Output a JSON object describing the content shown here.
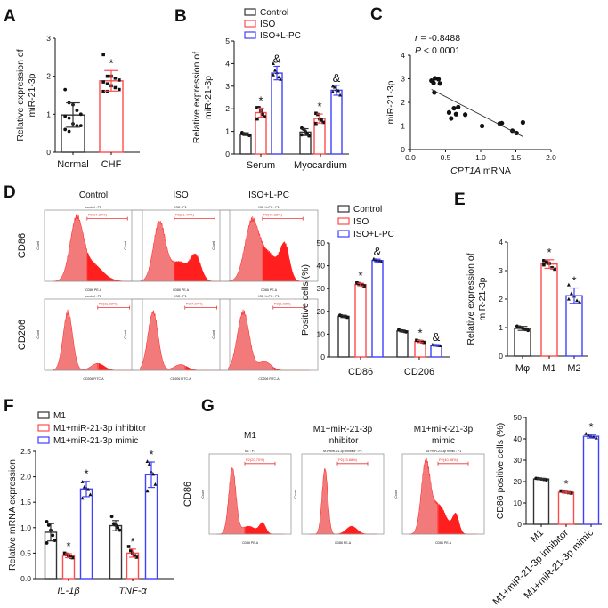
{
  "panels": [
    "A",
    "B",
    "C",
    "D",
    "E",
    "F",
    "G"
  ],
  "chart_data": [
    {
      "panel": "A",
      "type": "bar",
      "ylabel": [
        "Relative  expression of",
        "miR-21-3p"
      ],
      "ylim": [
        0,
        3
      ],
      "yticks": [
        "0",
        "1",
        "2",
        "3"
      ],
      "categories": [
        "Normal",
        "CHF"
      ],
      "bars": [
        {
          "category": "Normal",
          "color": "#333333",
          "mean": 0.98,
          "sd": 0.32,
          "shape": "circle",
          "points": [
            1.65,
            1.3,
            1.25,
            1.1,
            1.0,
            0.95,
            0.9,
            0.75,
            0.7,
            0.7,
            0.6,
            0.55
          ],
          "sig": ""
        },
        {
          "category": "CHF",
          "color": "#ff4b4b",
          "mean": 1.88,
          "sd": 0.27,
          "shape": "square",
          "points": [
            2.57,
            2.0,
            2.0,
            1.95,
            1.9,
            1.85,
            1.8,
            1.75,
            1.7,
            1.65,
            1.6,
            1.6
          ],
          "sig": "*"
        }
      ]
    },
    {
      "panel": "B",
      "type": "bar",
      "ylabel": [
        "Relative  expression of",
        "miR-21-3p"
      ],
      "ylim": [
        0,
        5
      ],
      "yticks": [
        "0",
        "1",
        "2",
        "3",
        "4",
        "5"
      ],
      "categories": [
        "Serum",
        "Myocardium"
      ],
      "legend": [
        {
          "label": "Control",
          "color": "#333333"
        },
        {
          "label": "ISO",
          "color": "#ff4b4b"
        },
        {
          "label": "ISO+L-PC",
          "color": "#4040ff"
        }
      ],
      "bars": [
        {
          "category": "Serum",
          "series": "Control",
          "color": "#333333",
          "mean": 0.88,
          "sd": 0.06,
          "shape": "circle",
          "points": [
            0.95,
            0.9,
            0.88,
            0.85,
            0.82,
            0.9
          ],
          "sig": ""
        },
        {
          "category": "Serum",
          "series": "ISO",
          "color": "#ff4b4b",
          "mean": 1.83,
          "sd": 0.2,
          "shape": "square",
          "points": [
            2.05,
            2.05,
            1.9,
            1.75,
            1.65,
            1.55
          ],
          "sig": "*"
        },
        {
          "category": "Serum",
          "series": "ISO+L-PC",
          "color": "#4040ff",
          "mean": 3.58,
          "sd": 0.3,
          "shape": "triangle",
          "points": [
            4.0,
            3.7,
            3.6,
            3.4,
            3.3,
            3.5
          ],
          "sig": "&"
        },
        {
          "category": "Myocardium",
          "series": "Control",
          "color": "#333333",
          "mean": 0.97,
          "sd": 0.15,
          "shape": "circle",
          "points": [
            1.15,
            1.1,
            1.0,
            0.9,
            0.8,
            0.85
          ],
          "sig": ""
        },
        {
          "category": "Myocardium",
          "series": "ISO",
          "color": "#ff4b4b",
          "mean": 1.57,
          "sd": 0.2,
          "shape": "square",
          "points": [
            1.8,
            1.75,
            1.55,
            1.5,
            1.4,
            1.35
          ],
          "sig": "*"
        },
        {
          "category": "Myocardium",
          "series": "ISO+L-PC",
          "color": "#4040ff",
          "mean": 2.82,
          "sd": 0.22,
          "shape": "triangle",
          "points": [
            3.0,
            2.95,
            2.85,
            2.8,
            2.6,
            2.75
          ],
          "sig": "&"
        }
      ]
    },
    {
      "panel": "C",
      "type": "scatter",
      "ylabel": "miR-21-3p",
      "xlabel_italic": "CPT1A",
      "xlabel_rest": " mRNA",
      "stats": {
        "r_symbol": "r",
        "r_value": " = -0.8488",
        "p_symbol": "P",
        "p_value": " < 0.0001"
      },
      "xlim": [
        0,
        2
      ],
      "ylim": [
        0,
        4
      ],
      "xticks": [
        "0.0",
        "0.5",
        "1.0",
        "1.5",
        "2.0"
      ],
      "yticks": [
        "0",
        "1",
        "2",
        "3",
        "4"
      ],
      "x": [
        0.3,
        0.33,
        0.35,
        0.4,
        0.42,
        0.34,
        0.55,
        0.58,
        0.62,
        0.65,
        0.68,
        0.78,
        1.02,
        1.27,
        1.3,
        1.45,
        1.51,
        1.6
      ],
      "y": [
        2.92,
        2.82,
        3.02,
        2.98,
        2.8,
        2.42,
        1.57,
        1.32,
        1.75,
        1.5,
        1.8,
        1.48,
        1.0,
        1.1,
        1.12,
        0.8,
        0.7,
        1.15
      ],
      "fit": {
        "x": [
          0.3,
          1.6
        ],
        "y": [
          2.55,
          0.55
        ]
      }
    },
    {
      "panel": "D",
      "type": "histogram",
      "column_titles": [
        "Control",
        "ISO",
        "ISO+L-PC"
      ],
      "row_labels": [
        "CD86",
        "CD206"
      ],
      "ylabel": "Count",
      "plots": [
        {
          "title": "control : P1",
          "gate_label": "P2(17.39%)",
          "xlabel": "CD86 PE-A",
          "gate": [
            3.0,
            4.9
          ],
          "peaks": [
            {
              "c": 2.5,
              "h": 1,
              "w": 0.3
            },
            {
              "c": 3.2,
              "h": 0.3,
              "w": 0.5
            }
          ]
        },
        {
          "title": "ISO : P1",
          "gate_label": "P2(31.47%)",
          "xlabel": "CD86 PE-A",
          "gate": [
            3.0,
            4.9
          ],
          "peaks": [
            {
              "c": 2.3,
              "h": 1,
              "w": 0.28
            },
            {
              "c": 4.0,
              "h": 0.42,
              "w": 0.25
            },
            {
              "c": 3.2,
              "h": 0.33,
              "w": 0.4
            }
          ]
        },
        {
          "title": "ISO+L-PC : P1",
          "gate_label": "P2(43.82%)",
          "xlabel": "CD86 PE-A",
          "gate": [
            3.0,
            4.9
          ],
          "peaks": [
            {
              "c": 2.5,
              "h": 1,
              "w": 0.33
            },
            {
              "c": 4.05,
              "h": 0.58,
              "w": 0.22
            },
            {
              "c": 3.3,
              "h": 0.45,
              "w": 0.4
            }
          ]
        },
        {
          "title": "control : P1",
          "gate_label": "P2(11.88%)",
          "xlabel": "CD206 FITC-A",
          "gate": [
            3.5,
            5.0
          ],
          "peaks": [
            {
              "c": 2.1,
              "h": 1,
              "w": 0.22
            },
            {
              "c": 3.5,
              "h": 0.12,
              "w": 0.3
            }
          ]
        },
        {
          "title": "ISO : P1",
          "gate_label": "P2(7.27%)",
          "xlabel": "CD206 FITC-A",
          "gate": [
            3.5,
            5.0
          ],
          "peaks": [
            {
              "c": 2.0,
              "h": 1,
              "w": 0.24
            },
            {
              "c": 3.3,
              "h": 0.1,
              "w": 0.3
            }
          ]
        },
        {
          "title": "ISO+L-PC : P1",
          "gate_label": "P2(5.38%)",
          "xlabel": "CD206 FITC-A",
          "gate": [
            3.5,
            5.0
          ],
          "peaks": [
            {
              "c": 2.1,
              "h": 1,
              "w": 0.28
            },
            {
              "c": 3.1,
              "h": 0.15,
              "w": 0.3
            }
          ]
        }
      ]
    },
    {
      "panel": "D",
      "type": "bar",
      "ylabel": [
        "Positive cells (%)"
      ],
      "ylim": [
        0,
        50
      ],
      "yticks": [
        "0",
        "10",
        "20",
        "30",
        "40",
        "50"
      ],
      "categories": [
        "CD86",
        "CD206"
      ],
      "legend": [
        {
          "label": "Control",
          "color": "#333333"
        },
        {
          "label": "ISO",
          "color": "#ff4b4b"
        },
        {
          "label": "ISO+L-PC",
          "color": "#4040ff"
        }
      ],
      "bars": [
        {
          "category": "CD86",
          "series": "Control",
          "color": "#333333",
          "mean": 17.8,
          "sd": 0.5,
          "shape": "circle",
          "points": [
            18.3,
            18.0,
            17.8,
            17.6,
            17.4
          ],
          "sig": ""
        },
        {
          "category": "CD86",
          "series": "ISO",
          "color": "#ff4b4b",
          "mean": 31.8,
          "sd": 0.6,
          "shape": "square",
          "points": [
            32.5,
            32.2,
            31.8,
            31.5,
            31.2
          ],
          "sig": "*"
        },
        {
          "category": "CD86",
          "series": "ISO+L-PC",
          "color": "#4040ff",
          "mean": 42.3,
          "sd": 0.6,
          "shape": "triangle",
          "points": [
            43.0,
            42.6,
            42.3,
            42.0,
            41.8
          ],
          "sig": "&"
        },
        {
          "category": "CD206",
          "series": "Control",
          "color": "#333333",
          "mean": 11.4,
          "sd": 0.4,
          "shape": "circle",
          "points": [
            11.9,
            11.6,
            11.4,
            11.2,
            11.0
          ],
          "sig": ""
        },
        {
          "category": "CD206",
          "series": "ISO",
          "color": "#ff4b4b",
          "mean": 6.8,
          "sd": 0.5,
          "shape": "square",
          "points": [
            7.3,
            7.0,
            6.8,
            6.6,
            6.4
          ],
          "sig": "*"
        },
        {
          "category": "CD206",
          "series": "ISO+L-PC",
          "color": "#4040ff",
          "mean": 5.1,
          "sd": 0.3,
          "shape": "triangle",
          "points": [
            5.4,
            5.2,
            5.1,
            5.0,
            4.9
          ],
          "sig": "&"
        }
      ]
    },
    {
      "panel": "E",
      "type": "bar",
      "ylabel": [
        "Relative  expression of",
        "miR-21-3p"
      ],
      "ylim": [
        0,
        4
      ],
      "yticks": [
        "0",
        "1",
        "2",
        "3",
        "4"
      ],
      "categories": [
        "Mφ",
        "M1",
        "M2"
      ],
      "bars": [
        {
          "category": "Mφ",
          "color": "#333333",
          "mean": 0.97,
          "sd": 0.07,
          "shape": "circle",
          "points": [
            1.05,
            1.02,
            0.98,
            0.93,
            0.9
          ],
          "sig": ""
        },
        {
          "category": "M1",
          "color": "#ff4b4b",
          "mean": 3.23,
          "sd": 0.15,
          "shape": "square",
          "points": [
            3.35,
            3.3,
            3.25,
            3.1,
            3.05,
            3.2
          ],
          "sig": "*"
        },
        {
          "category": "M2",
          "color": "#4040ff",
          "mean": 2.12,
          "sd": 0.27,
          "shape": "triangle",
          "points": [
            2.5,
            2.2,
            2.1,
            1.95,
            1.9,
            2.0
          ],
          "sig": "*"
        }
      ]
    },
    {
      "panel": "F",
      "type": "bar",
      "ylabel": [
        "Relative mRNA expression"
      ],
      "ylim": [
        0,
        2.5
      ],
      "yticks": [
        "0.0",
        "0.5",
        "1.0",
        "1.5",
        "2.0",
        "2.5"
      ],
      "categories": [
        "IL-1β",
        "TNF-α"
      ],
      "legend": [
        {
          "label": "M1",
          "color": "#333333"
        },
        {
          "label": "M1+miR-21-3p inhibitor",
          "color": "#ff4b4b"
        },
        {
          "label": "M1+miR-21-3p mimic",
          "color": "#4040ff"
        }
      ],
      "bars": [
        {
          "category": "IL-1β",
          "series": "M1",
          "color": "#333333",
          "mean": 0.91,
          "sd": 0.17,
          "shape": "circle",
          "points": [
            1.12,
            1.05,
            0.95,
            0.85,
            0.75,
            0.7
          ],
          "sig": ""
        },
        {
          "category": "IL-1β",
          "series": "M1+miR-21-3p inhibitor",
          "color": "#ff4b4b",
          "mean": 0.45,
          "sd": 0.04,
          "shape": "square",
          "points": [
            0.5,
            0.48,
            0.45,
            0.42,
            0.41
          ],
          "sig": "*"
        },
        {
          "category": "IL-1β",
          "series": "M1+miR-21-3p mimic",
          "color": "#4040ff",
          "mean": 1.76,
          "sd": 0.15,
          "shape": "triangle",
          "points": [
            1.9,
            1.8,
            1.78,
            1.75,
            1.65,
            1.58
          ],
          "sig": "*"
        },
        {
          "category": "TNF-α",
          "series": "M1",
          "color": "#333333",
          "mean": 1.04,
          "sd": 0.1,
          "shape": "circle",
          "points": [
            1.22,
            1.08,
            1.05,
            1.0,
            0.95
          ],
          "sig": ""
        },
        {
          "category": "TNF-α",
          "series": "M1+miR-21-3p inhibitor",
          "color": "#ff4b4b",
          "mean": 0.5,
          "sd": 0.08,
          "shape": "square",
          "points": [
            0.63,
            0.55,
            0.5,
            0.45,
            0.42
          ],
          "sig": "*"
        },
        {
          "category": "TNF-α",
          "series": "M1+miR-21-3p mimic",
          "color": "#4040ff",
          "mean": 2.04,
          "sd": 0.25,
          "shape": "triangle",
          "points": [
            2.3,
            2.25,
            2.1,
            2.05,
            1.85,
            1.72
          ],
          "sig": "*"
        }
      ]
    },
    {
      "panel": "G",
      "type": "histogram",
      "column_titles": [
        [
          "M1"
        ],
        [
          "M1+miR-21-3p",
          "inhibitor"
        ],
        [
          "M1+miR-21-3p",
          "mimic"
        ]
      ],
      "row_labels": [
        "CD86"
      ],
      "ylabel": "Count",
      "plots": [
        {
          "title": "M1 : P1",
          "gate_label": "P2(20.70%)",
          "xlabel": "CD86 PE-A",
          "gate": [
            3.0,
            4.7
          ],
          "peaks": [
            {
              "c": 2.3,
              "h": 1,
              "w": 0.2
            },
            {
              "c": 4.0,
              "h": 0.16,
              "w": 0.18
            },
            {
              "c": 3.2,
              "h": 0.12,
              "w": 0.4
            }
          ]
        },
        {
          "title": "M1+miR-21-3p inhibitor : P1",
          "gate_label": "P2(15.88%)",
          "xlabel": "CD86 PE-A",
          "gate": [
            3.0,
            4.7
          ],
          "peaks": [
            {
              "c": 2.3,
              "h": 1,
              "w": 0.16
            },
            {
              "c": 3.8,
              "h": 0.12,
              "w": 0.3
            }
          ]
        },
        {
          "title": "M1+miR-21-3p mimic : P1",
          "gate_label": "P2(40.88%)",
          "xlabel": "CD86 PE-A",
          "gate": [
            3.0,
            4.7
          ],
          "peaks": [
            {
              "c": 2.3,
              "h": 1,
              "w": 0.24
            },
            {
              "c": 4.0,
              "h": 0.28,
              "w": 0.18
            },
            {
              "c": 3.0,
              "h": 0.45,
              "w": 0.45
            }
          ]
        }
      ]
    },
    {
      "panel": "G",
      "type": "bar",
      "ylabel": [
        "CD86 positive cells (%)"
      ],
      "ylim": [
        0,
        50
      ],
      "yticks": [
        "0",
        "10",
        "20",
        "30",
        "40",
        "50"
      ],
      "categories": [
        "M1",
        "M1+miR-21-3p inhibitor",
        "M1+miR-21-3p mimic"
      ],
      "bars": [
        {
          "category": "M1",
          "color": "#333333",
          "mean": 21.2,
          "sd": 0.3,
          "shape": "circle",
          "points": [
            21.5,
            21.4,
            21.2,
            21.0,
            20.8
          ],
          "sig": ""
        },
        {
          "category": "M1+miR-21-3p inhibitor",
          "color": "#ff4b4b",
          "mean": 15.0,
          "sd": 0.4,
          "shape": "square",
          "points": [
            15.6,
            15.2,
            15.0,
            14.8,
            14.6
          ],
          "sig": "*"
        },
        {
          "category": "M1+miR-21-3p mimic",
          "color": "#4040ff",
          "mean": 41.2,
          "sd": 0.8,
          "shape": "triangle",
          "points": [
            42.4,
            41.8,
            41.2,
            40.8,
            40.4
          ],
          "sig": "*"
        }
      ]
    }
  ]
}
